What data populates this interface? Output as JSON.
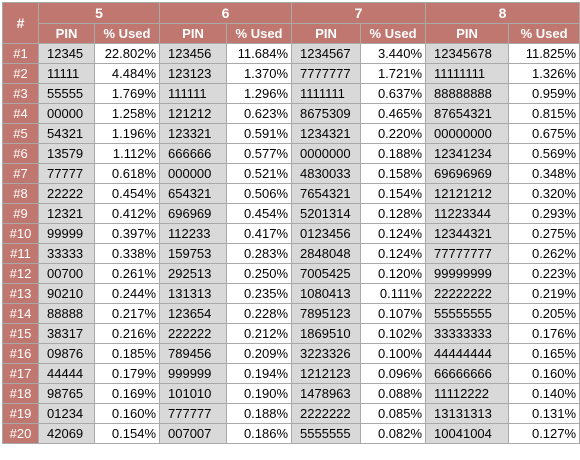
{
  "table": {
    "corner": "#",
    "groups": [
      "5",
      "6",
      "7",
      "8"
    ],
    "sub_headers": [
      "PIN",
      "% Used"
    ],
    "rows": [
      {
        "rank": "#1",
        "cells": [
          [
            "12345",
            "22.802%"
          ],
          [
            "123456",
            "11.684%"
          ],
          [
            "1234567",
            "3.440%"
          ],
          [
            "12345678",
            "11.825%"
          ]
        ]
      },
      {
        "rank": "#2",
        "cells": [
          [
            "11111",
            "4.484%"
          ],
          [
            "123123",
            "1.370%"
          ],
          [
            "7777777",
            "1.721%"
          ],
          [
            "11111111",
            "1.326%"
          ]
        ]
      },
      {
        "rank": "#3",
        "cells": [
          [
            "55555",
            "1.769%"
          ],
          [
            "111111",
            "1.296%"
          ],
          [
            "1111111",
            "0.637%"
          ],
          [
            "88888888",
            "0.959%"
          ]
        ]
      },
      {
        "rank": "#4",
        "cells": [
          [
            "00000",
            "1.258%"
          ],
          [
            "121212",
            "0.623%"
          ],
          [
            "8675309",
            "0.465%"
          ],
          [
            "87654321",
            "0.815%"
          ]
        ]
      },
      {
        "rank": "#5",
        "cells": [
          [
            "54321",
            "1.196%"
          ],
          [
            "123321",
            "0.591%"
          ],
          [
            "1234321",
            "0.220%"
          ],
          [
            "00000000",
            "0.675%"
          ]
        ]
      },
      {
        "rank": "#6",
        "cells": [
          [
            "13579",
            "1.112%"
          ],
          [
            "666666",
            "0.577%"
          ],
          [
            "0000000",
            "0.188%"
          ],
          [
            "12341234",
            "0.569%"
          ]
        ]
      },
      {
        "rank": "#7",
        "cells": [
          [
            "77777",
            "0.618%"
          ],
          [
            "000000",
            "0.521%"
          ],
          [
            "4830033",
            "0.158%"
          ],
          [
            "69696969",
            "0.348%"
          ]
        ]
      },
      {
        "rank": "#8",
        "cells": [
          [
            "22222",
            "0.454%"
          ],
          [
            "654321",
            "0.506%"
          ],
          [
            "7654321",
            "0.154%"
          ],
          [
            "12121212",
            "0.320%"
          ]
        ]
      },
      {
        "rank": "#9",
        "cells": [
          [
            "12321",
            "0.412%"
          ],
          [
            "696969",
            "0.454%"
          ],
          [
            "5201314",
            "0.128%"
          ],
          [
            "11223344",
            "0.293%"
          ]
        ]
      },
      {
        "rank": "#10",
        "cells": [
          [
            "99999",
            "0.397%"
          ],
          [
            "112233",
            "0.417%"
          ],
          [
            "0123456",
            "0.124%"
          ],
          [
            "12344321",
            "0.275%"
          ]
        ]
      },
      {
        "rank": "#11",
        "cells": [
          [
            "33333",
            "0.338%"
          ],
          [
            "159753",
            "0.283%"
          ],
          [
            "2848048",
            "0.124%"
          ],
          [
            "77777777",
            "0.262%"
          ]
        ]
      },
      {
        "rank": "#12",
        "cells": [
          [
            "00700",
            "0.261%"
          ],
          [
            "292513",
            "0.250%"
          ],
          [
            "7005425",
            "0.120%"
          ],
          [
            "99999999",
            "0.223%"
          ]
        ]
      },
      {
        "rank": "#13",
        "cells": [
          [
            "90210",
            "0.244%"
          ],
          [
            "131313",
            "0.235%"
          ],
          [
            "1080413",
            "0.111%"
          ],
          [
            "22222222",
            "0.219%"
          ]
        ]
      },
      {
        "rank": "#14",
        "cells": [
          [
            "88888",
            "0.217%"
          ],
          [
            "123654",
            "0.228%"
          ],
          [
            "7895123",
            "0.107%"
          ],
          [
            "55555555",
            "0.205%"
          ]
        ]
      },
      {
        "rank": "#15",
        "cells": [
          [
            "38317",
            "0.216%"
          ],
          [
            "222222",
            "0.212%"
          ],
          [
            "1869510",
            "0.102%"
          ],
          [
            "33333333",
            "0.176%"
          ]
        ]
      },
      {
        "rank": "#16",
        "cells": [
          [
            "09876",
            "0.185%"
          ],
          [
            "789456",
            "0.209%"
          ],
          [
            "3223326",
            "0.100%"
          ],
          [
            "44444444",
            "0.165%"
          ]
        ]
      },
      {
        "rank": "#17",
        "cells": [
          [
            "44444",
            "0.179%"
          ],
          [
            "999999",
            "0.194%"
          ],
          [
            "1212123",
            "0.096%"
          ],
          [
            "66666666",
            "0.160%"
          ]
        ]
      },
      {
        "rank": "#18",
        "cells": [
          [
            "98765",
            "0.169%"
          ],
          [
            "101010",
            "0.190%"
          ],
          [
            "1478963",
            "0.088%"
          ],
          [
            "11112222",
            "0.140%"
          ]
        ]
      },
      {
        "rank": "#19",
        "cells": [
          [
            "01234",
            "0.160%"
          ],
          [
            "777777",
            "0.188%"
          ],
          [
            "2222222",
            "0.085%"
          ],
          [
            "13131313",
            "0.131%"
          ]
        ]
      },
      {
        "rank": "#20",
        "cells": [
          [
            "42069",
            "0.154%"
          ],
          [
            "007007",
            "0.186%"
          ],
          [
            "5555555",
            "0.082%"
          ],
          [
            "10041004",
            "0.127%"
          ]
        ]
      }
    ]
  },
  "colors": {
    "header_bg": "#c0776f",
    "header_text": "#ffffff",
    "pin_cell_bg": "#d9d9d9",
    "pct_cell_bg": "#ffffff",
    "border": "#a9a9a9"
  }
}
